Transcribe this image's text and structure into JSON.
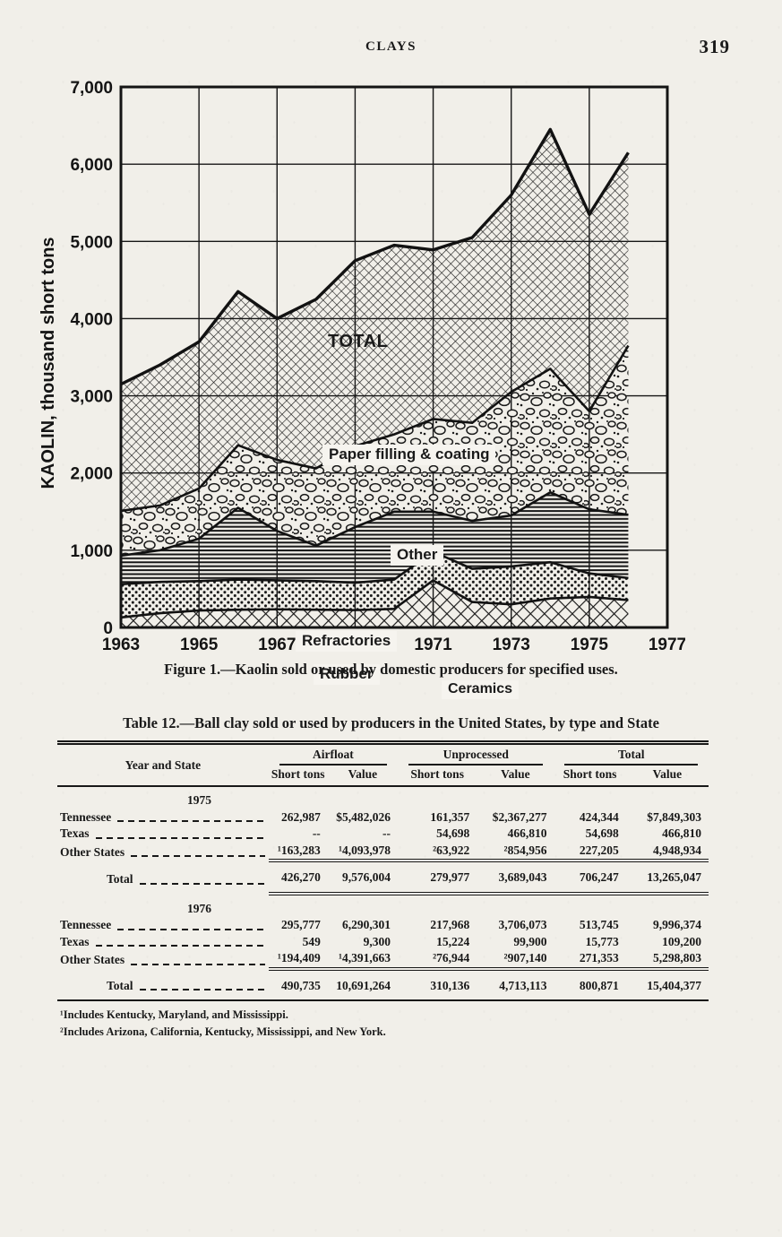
{
  "page": {
    "header": "CLAYS",
    "page_number": "319"
  },
  "figure": {
    "caption": "Figure 1.—Kaolin sold or used by domestic producers for specified uses.",
    "y_axis_label": "KAOLIN, thousand short tons",
    "y_ticks": [
      "7,000",
      "6,000",
      "5,000",
      "4,000",
      "3,000",
      "2,000",
      "1,000",
      "0"
    ],
    "x_ticks": [
      "1963",
      "1965",
      "1967",
      "1969",
      "1971",
      "1973",
      "1975",
      "1977"
    ],
    "area_labels": {
      "total": "TOTAL",
      "paper": "Paper filling & coating",
      "other": "Other",
      "refractories": "Refractories",
      "rubber": "Rubber",
      "ceramics": "Ceramics"
    }
  },
  "chart_data": {
    "type": "area",
    "stacked": true,
    "title": "Kaolin sold or used by domestic producers for specified uses",
    "xlabel": "",
    "ylabel": "KAOLIN, thousand short tons",
    "units": "thousand short tons",
    "xlim": [
      1963,
      1977
    ],
    "ylim": [
      0,
      7000
    ],
    "grid": true,
    "x": [
      1963,
      1964,
      1965,
      1966,
      1967,
      1968,
      1969,
      1970,
      1971,
      1972,
      1973,
      1974,
      1975,
      1976
    ],
    "series": [
      {
        "name": "Ceramics",
        "pattern": "ceramics",
        "values": [
          130,
          185,
          220,
          230,
          235,
          230,
          225,
          240,
          610,
          330,
          300,
          375,
          395,
          355
        ]
      },
      {
        "name": "Rubber",
        "pattern": "dots",
        "values": [
          430,
          405,
          380,
          390,
          375,
          370,
          355,
          380,
          370,
          430,
          490,
          470,
          305,
          285
        ]
      },
      {
        "name": "Refractories",
        "pattern": "hlines",
        "values": [
          370,
          410,
          550,
          930,
          640,
          460,
          720,
          880,
          520,
          620,
          660,
          905,
          830,
          820
        ]
      },
      {
        "name": "Other",
        "pattern": "bubbles",
        "values": [
          580,
          580,
          650,
          810,
          920,
          1000,
          1050,
          1000,
          1200,
          1270,
          1600,
          1600,
          1270,
          2190
        ]
      },
      {
        "name": "Paper filling & coating",
        "pattern": "crosshatch",
        "values": [
          1640,
          1820,
          1900,
          1990,
          1830,
          2190,
          2400,
          2450,
          2190,
          2400,
          2550,
          3100,
          2550,
          2500
        ]
      }
    ],
    "total_label": "TOTAL",
    "total": [
      3150,
      3400,
      3700,
      4350,
      4000,
      4250,
      4750,
      4950,
      4890,
      5050,
      5600,
      6450,
      5350,
      6150
    ]
  },
  "table": {
    "title": "Table 12.—Ball clay sold or used by producers in the United States, by type and State",
    "col_label": "Year and State",
    "groups": [
      "Airfloat",
      "Unprocessed",
      "Total"
    ],
    "subheaders": [
      "Short tons",
      "Value"
    ],
    "sections": [
      {
        "year": "1975",
        "rows": [
          {
            "label": "Tennessee",
            "values": [
              "262,987",
              "$5,482,026",
              "161,357",
              "$2,367,277",
              "424,344",
              "$7,849,303"
            ]
          },
          {
            "label": "Texas",
            "values": [
              "--",
              "--",
              "54,698",
              "466,810",
              "54,698",
              "466,810"
            ]
          },
          {
            "label": "Other States",
            "values": [
              "¹163,283",
              "¹4,093,978",
              "²63,922",
              "²854,956",
              "227,205",
              "4,948,934"
            ]
          }
        ],
        "total": {
          "label": "Total",
          "values": [
            "426,270",
            "9,576,004",
            "279,977",
            "3,689,043",
            "706,247",
            "13,265,047"
          ]
        }
      },
      {
        "year": "1976",
        "rows": [
          {
            "label": "Tennessee",
            "values": [
              "295,777",
              "6,290,301",
              "217,968",
              "3,706,073",
              "513,745",
              "9,996,374"
            ]
          },
          {
            "label": "Texas",
            "values": [
              "549",
              "9,300",
              "15,224",
              "99,900",
              "15,773",
              "109,200"
            ]
          },
          {
            "label": "Other States",
            "values": [
              "¹194,409",
              "¹4,391,663",
              "²76,944",
              "²907,140",
              "271,353",
              "5,298,803"
            ]
          }
        ],
        "total": {
          "label": "Total",
          "values": [
            "490,735",
            "10,691,264",
            "310,136",
            "4,713,113",
            "800,871",
            "15,404,377"
          ]
        }
      }
    ],
    "footnotes": [
      "¹Includes Kentucky, Maryland, and Mississippi.",
      "²Includes Arizona, California, Kentucky, Mississippi, and New York."
    ]
  }
}
